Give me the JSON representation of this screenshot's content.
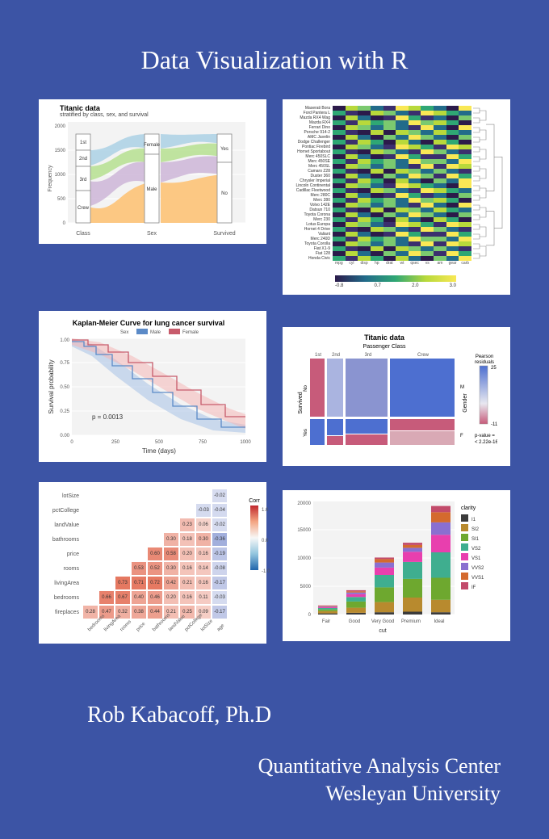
{
  "page": {
    "background_color": "#3c54a5",
    "text_color": "#ffffff",
    "title": "Data Visualization with R",
    "author": "Rob Kabacoff, Ph.D",
    "org_line1": "Quantitative Analysis Center",
    "org_line2": "Wesleyan University",
    "title_fontsize": 32,
    "author_fontsize": 28,
    "org_fontsize": 26
  },
  "alluvial": {
    "type": "alluvial",
    "title": "Titanic data",
    "subtitle": "stratified by class, sex, and survival",
    "ylabel": "Frequency",
    "yticks": [
      0,
      500,
      1000,
      1500,
      2000
    ],
    "axis1": {
      "label": "Class",
      "cats": [
        "1st",
        "2nd",
        "3rd",
        "Crew"
      ],
      "heights": [
        325,
        285,
        706,
        885
      ],
      "colors": [
        "#a6cee3",
        "#b2df8a",
        "#cab2d6",
        "#fdbf6f"
      ]
    },
    "axis2": {
      "label": "Sex",
      "cats": [
        "Female",
        "Male"
      ],
      "heights": [
        470,
        1731
      ]
    },
    "axis3": {
      "label": "Survived",
      "cats": [
        "Yes",
        "No"
      ],
      "heights": [
        711,
        1490
      ]
    },
    "flow_colors": [
      "#a6cee3",
      "#b2df8a",
      "#cab2d6",
      "#fdbf6f"
    ],
    "background": "#ffffff",
    "grid_color": "#ebebeb"
  },
  "heatmap": {
    "type": "heatmap",
    "row_labels": [
      "Maserati Bora",
      "Ford Pantera L",
      "Mazda RX4 Wag",
      "Mazda RX4",
      "Ferrari Dino",
      "Porsche 914-2",
      "AMC Javelin",
      "Dodge Challenger",
      "Pontiac Firebird",
      "Hornet Sportabout",
      "Merc 450SLC",
      "Merc 450SE",
      "Merc 450SL",
      "Camaro Z28",
      "Duster 360",
      "Chrysler Imperial",
      "Lincoln Continental",
      "Cadillac Fleetwood",
      "Merc 280C",
      "Merc 280",
      "Volvo 142E",
      "Datsun 710",
      "Toyota Corona",
      "Merc 230",
      "Lotus Europa",
      "Hornet 4 Drive",
      "Valiant",
      "Merc 240D",
      "Toyota Corolla",
      "Fiat X1-9",
      "Fiat 128",
      "Honda Civic"
    ],
    "col_labels": [
      "mpg",
      "cyl",
      "disp",
      "hp",
      "drat",
      "wt",
      "qsec",
      "vs",
      "am",
      "gear",
      "carb"
    ],
    "palette": [
      "#2b1a4a",
      "#3b2f6e",
      "#226b8a",
      "#2fa774",
      "#7bc96f",
      "#b8d93b",
      "#f9e855"
    ],
    "colorbar_ticks": [
      "-0.8",
      "0.7",
      "2.0",
      "3.0"
    ],
    "background": "#ffffff",
    "dendrogram_color": "#888888"
  },
  "km": {
    "type": "survival-curve",
    "title": "Kaplan-Meier Curve for lung cancer survival",
    "xlabel": "Time (days)",
    "ylabel": "Survival probability",
    "xlim": [
      0,
      1000
    ],
    "xticks": [
      0,
      250,
      500,
      750,
      1000
    ],
    "ylim": [
      0,
      1
    ],
    "yticks": [
      0.0,
      0.25,
      0.5,
      0.75,
      1.0
    ],
    "legend_title": "Sex",
    "series": [
      {
        "name": "Male",
        "color": "#5b8ac7",
        "fill": "#aec7e8"
      },
      {
        "name": "Female",
        "color": "#c75b6b",
        "fill": "#f4b6b6"
      }
    ],
    "annotation": "p = 0.0013",
    "background": "#ffffff",
    "grid_color": "#ebebeb"
  },
  "mosaic": {
    "type": "mosaic",
    "title": "Titanic data",
    "x_var": "Passenger Class",
    "x_cats": [
      "1st",
      "2nd",
      "3rd",
      "Crew"
    ],
    "y_var": "Survived",
    "y_cats": [
      "No",
      "Yes"
    ],
    "facet_var": "Gender",
    "facet_cats": [
      "M",
      "F"
    ],
    "legend_title": "Pearson residuals",
    "legend_range": [
      -11,
      25
    ],
    "pvalue_label": "p-value =",
    "pvalue": "< 2.22e-16",
    "colors": {
      "pos": "#4d6fd0",
      "mid": "#aab4e0",
      "neg": "#c75b7a",
      "neutral": "#d9d9e6"
    },
    "background": "#ffffff"
  },
  "corr": {
    "type": "correlation-matrix",
    "vars": [
      "fireplaces",
      "bedrooms",
      "livingArea",
      "rooms",
      "price",
      "bathrooms",
      "landValue",
      "pctCollege",
      "lotSize"
    ],
    "x_vars": [
      "bedrooms",
      "livingArea",
      "rooms",
      "price",
      "bathrooms",
      "landValue",
      "pctCollege",
      "lotSize",
      "age"
    ],
    "cells": [
      {
        "r": 8,
        "c": 0,
        "v": 0.28
      },
      {
        "r": 8,
        "c": 1,
        "v": 0.47
      },
      {
        "r": 8,
        "c": 2,
        "v": 0.32
      },
      {
        "r": 8,
        "c": 3,
        "v": 0.38
      },
      {
        "r": 8,
        "c": 4,
        "v": 0.44
      },
      {
        "r": 8,
        "c": 5,
        "v": 0.21
      },
      {
        "r": 8,
        "c": 6,
        "v": 0.25
      },
      {
        "r": 8,
        "c": 7,
        "v": 0.09
      },
      {
        "r": 8,
        "c": 8,
        "v": -0.17
      },
      {
        "r": 7,
        "c": 1,
        "v": 0.66
      },
      {
        "r": 7,
        "c": 2,
        "v": 0.67
      },
      {
        "r": 7,
        "c": 3,
        "v": 0.4
      },
      {
        "r": 7,
        "c": 4,
        "v": 0.46
      },
      {
        "r": 7,
        "c": 5,
        "v": 0.2
      },
      {
        "r": 7,
        "c": 6,
        "v": 0.16
      },
      {
        "r": 7,
        "c": 7,
        "v": 0.11
      },
      {
        "r": 7,
        "c": 8,
        "v": -0.03
      },
      {
        "r": 6,
        "c": 2,
        "v": 0.73
      },
      {
        "r": 6,
        "c": 3,
        "v": 0.71
      },
      {
        "r": 6,
        "c": 4,
        "v": 0.72
      },
      {
        "r": 6,
        "c": 5,
        "v": 0.42
      },
      {
        "r": 6,
        "c": 6,
        "v": 0.21
      },
      {
        "r": 6,
        "c": 7,
        "v": 0.16
      },
      {
        "r": 6,
        "c": 8,
        "v": -0.17
      },
      {
        "r": 5,
        "c": 3,
        "v": 0.53
      },
      {
        "r": 5,
        "c": 4,
        "v": 0.52
      },
      {
        "r": 5,
        "c": 5,
        "v": 0.3
      },
      {
        "r": 5,
        "c": 6,
        "v": 0.16
      },
      {
        "r": 5,
        "c": 7,
        "v": 0.14
      },
      {
        "r": 5,
        "c": 8,
        "v": -0.08
      },
      {
        "r": 4,
        "c": 4,
        "v": 0.6
      },
      {
        "r": 4,
        "c": 5,
        "v": 0.58
      },
      {
        "r": 4,
        "c": 6,
        "v": 0.2
      },
      {
        "r": 4,
        "c": 7,
        "v": 0.16
      },
      {
        "r": 4,
        "c": 8,
        "v": -0.19
      },
      {
        "r": 3,
        "c": 5,
        "v": 0.3
      },
      {
        "r": 3,
        "c": 6,
        "v": 0.18
      },
      {
        "r": 3,
        "c": 7,
        "v": 0.3
      },
      {
        "r": 3,
        "c": 8,
        "v": -0.36
      },
      {
        "r": 2,
        "c": 6,
        "v": 0.23
      },
      {
        "r": 2,
        "c": 7,
        "v": 0.06
      },
      {
        "r": 2,
        "c": 8,
        "v": -0.02
      },
      {
        "r": 1,
        "c": 7,
        "v": -0.03
      },
      {
        "r": 1,
        "c": 8,
        "v": -0.04
      },
      {
        "r": 0,
        "c": 8,
        "v": -0.02
      }
    ],
    "legend_title": "Corr",
    "legend_ticks": [
      "1.0",
      "0.0",
      "-1.0"
    ],
    "palette_pos": "#e36b52",
    "palette_neg": "#6b7fc7",
    "palette_mid": "#f7f7f7",
    "background": "#ffffff"
  },
  "stacked": {
    "type": "stacked-bar",
    "xlabel": "cut",
    "x_cats": [
      "Fair",
      "Good",
      "Very Good",
      "Premium",
      "Ideal"
    ],
    "ylabel": "",
    "yticks": [
      0,
      5000,
      10000,
      15000,
      20000
    ],
    "legend_title": "clarity",
    "series": [
      {
        "name": "I1",
        "color": "#3b3b3b"
      },
      {
        "name": "SI2",
        "color": "#b88a2e"
      },
      {
        "name": "SI1",
        "color": "#6ea82f"
      },
      {
        "name": "VS2",
        "color": "#3fae8f"
      },
      {
        "name": "VS1",
        "color": "#e83fae"
      },
      {
        "name": "VVS2",
        "color": "#8a6fd0"
      },
      {
        "name": "VVS1",
        "color": "#d46a2e"
      },
      {
        "name": "IF",
        "color": "#c24b6b"
      }
    ],
    "stacks": [
      [
        200,
        400,
        300,
        250,
        150,
        100,
        80,
        120
      ],
      [
        300,
        900,
        1100,
        800,
        500,
        300,
        200,
        200
      ],
      [
        400,
        1800,
        2600,
        2200,
        1300,
        900,
        600,
        280
      ],
      [
        500,
        2500,
        3300,
        3000,
        1800,
        700,
        500,
        400
      ],
      [
        400,
        2200,
        3900,
        4500,
        3100,
        2200,
        1800,
        1100
      ]
    ],
    "background": "#ffffff",
    "grid_color": "#ebebeb"
  }
}
